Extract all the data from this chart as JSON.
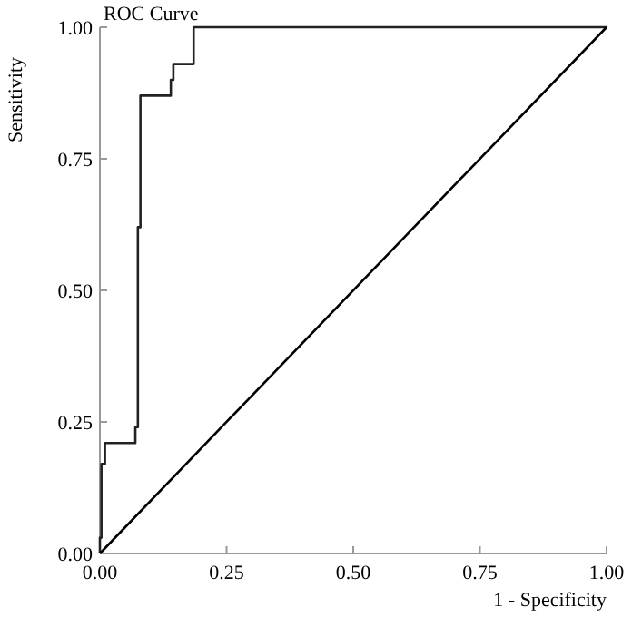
{
  "chart_data": {
    "type": "line",
    "title": "ROC Curve",
    "xlabel": "1 - Specificity",
    "ylabel": "Sensitivity",
    "series": [
      {
        "color": "#222222",
        "x": [
          0,
          0,
          0.003,
          0.003,
          0.01,
          0.01,
          0.07,
          0.07,
          0.075,
          0.075,
          0.08,
          0.08,
          0.14,
          0.14,
          0.145,
          0.145,
          0.185,
          0.185,
          1
        ],
        "values": [
          0,
          0.03,
          0.03,
          0.17,
          0.17,
          0.21,
          0.21,
          0.24,
          0.24,
          0.62,
          0.62,
          0.87,
          0.87,
          0.9,
          0.9,
          0.93,
          0.93,
          1,
          1
        ]
      },
      {
        "color": "#000000",
        "x": [
          0,
          1
        ],
        "values": [
          0,
          1
        ]
      }
    ],
    "xlim": [
      0,
      1
    ],
    "ylim": [
      0,
      1
    ],
    "xticks": [
      {
        "value": 0,
        "label": "0.00"
      },
      {
        "value": 0.25,
        "label": "0.25"
      },
      {
        "value": 0.5,
        "label": "0.50"
      },
      {
        "value": 0.75,
        "label": "0.75"
      },
      {
        "value": 1,
        "label": "1.00"
      }
    ],
    "yticks": [
      {
        "value": 0,
        "label": "0.00"
      },
      {
        "value": 0.25,
        "label": "0.25"
      },
      {
        "value": 0.5,
        "label": "0.50"
      },
      {
        "value": 0.75,
        "label": "0.75"
      },
      {
        "value": 1,
        "label": "1.00"
      }
    ],
    "marker": "none",
    "line_style": "solid"
  }
}
